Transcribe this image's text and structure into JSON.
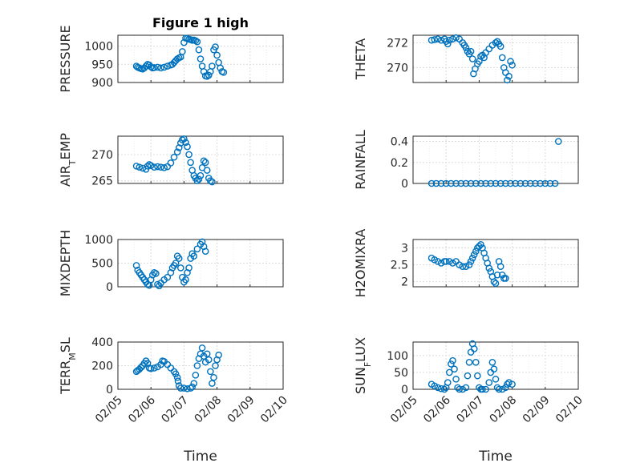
{
  "chart_data": [
    {
      "type": "scatter",
      "id": "pressure",
      "title": "Figure 1 high",
      "ylabel_main": "PRESSURE",
      "ylabel_sub": "",
      "ylabel_tail": "",
      "ylim": [
        900,
        1030
      ],
      "yticks": [
        900,
        950,
        1000
      ],
      "xticks": [
        "02/05",
        "02/06",
        "02/07",
        "02/08",
        "02/09",
        "02/10"
      ],
      "show_xticks": false,
      "xlabel": "",
      "color": "#0072BD",
      "grid": true,
      "points": [
        [
          0.56,
          945
        ],
        [
          0.6,
          942
        ],
        [
          0.65,
          940
        ],
        [
          0.7,
          938
        ],
        [
          0.75,
          937
        ],
        [
          0.8,
          940
        ],
        [
          0.85,
          945
        ],
        [
          0.9,
          950
        ],
        [
          0.95,
          948
        ],
        [
          1.0,
          943
        ],
        [
          1.05,
          940
        ],
        [
          1.1,
          941
        ],
        [
          1.2,
          942
        ],
        [
          1.3,
          940
        ],
        [
          1.4,
          942
        ],
        [
          1.5,
          945
        ],
        [
          1.6,
          948
        ],
        [
          1.65,
          950
        ],
        [
          1.7,
          955
        ],
        [
          1.75,
          960
        ],
        [
          1.8,
          965
        ],
        [
          1.85,
          968
        ],
        [
          1.9,
          970
        ],
        [
          1.95,
          985
        ],
        [
          2.0,
          1010
        ],
        [
          2.05,
          1022
        ],
        [
          2.1,
          1021
        ],
        [
          2.15,
          1019
        ],
        [
          2.2,
          1018
        ],
        [
          2.25,
          1016
        ],
        [
          2.3,
          1017
        ],
        [
          2.35,
          1015
        ],
        [
          2.4,
          1012
        ],
        [
          2.45,
          990
        ],
        [
          2.5,
          965
        ],
        [
          2.55,
          945
        ],
        [
          2.6,
          930
        ],
        [
          2.65,
          918
        ],
        [
          2.7,
          917
        ],
        [
          2.75,
          920
        ],
        [
          2.8,
          930
        ],
        [
          2.85,
          945
        ],
        [
          2.9,
          990
        ],
        [
          2.95,
          998
        ],
        [
          3.0,
          975
        ],
        [
          3.05,
          955
        ],
        [
          3.1,
          940
        ],
        [
          3.15,
          930
        ],
        [
          3.2,
          928
        ]
      ]
    },
    {
      "type": "scatter",
      "id": "theta",
      "title": "",
      "ylabel_main": "THETA",
      "ylabel_sub": "",
      "ylabel_tail": "",
      "ylim": [
        268.8,
        272.6
      ],
      "yticks": [
        270,
        272
      ],
      "xticks": [
        "02/05",
        "02/06",
        "02/07",
        "02/08",
        "02/09",
        "02/10"
      ],
      "show_xticks": false,
      "xlabel": "",
      "color": "#0072BD",
      "grid": true,
      "points": [
        [
          0.56,
          272.2
        ],
        [
          0.65,
          272.25
        ],
        [
          0.75,
          272.3
        ],
        [
          0.85,
          272.2
        ],
        [
          0.95,
          272.3
        ],
        [
          1.0,
          272.1
        ],
        [
          1.05,
          271.9
        ],
        [
          1.1,
          272.2
        ],
        [
          1.2,
          272.3
        ],
        [
          1.3,
          272.4
        ],
        [
          1.4,
          272.3
        ],
        [
          1.5,
          272.0
        ],
        [
          1.55,
          271.8
        ],
        [
          1.6,
          271.6
        ],
        [
          1.65,
          271.3
        ],
        [
          1.7,
          271.1
        ],
        [
          1.75,
          271.3
        ],
        [
          1.8,
          270.7
        ],
        [
          1.83,
          269.5
        ],
        [
          1.88,
          269.9
        ],
        [
          1.95,
          270.3
        ],
        [
          2.0,
          270.5
        ],
        [
          2.05,
          270.9
        ],
        [
          2.1,
          271.0
        ],
        [
          2.15,
          270.8
        ],
        [
          2.2,
          271.2
        ],
        [
          2.3,
          271.5
        ],
        [
          2.4,
          271.8
        ],
        [
          2.5,
          272.0
        ],
        [
          2.55,
          272.1
        ],
        [
          2.6,
          271.9
        ],
        [
          2.65,
          271.7
        ],
        [
          2.7,
          270.8
        ],
        [
          2.75,
          270.0
        ],
        [
          2.8,
          269.6
        ],
        [
          2.85,
          269.0
        ],
        [
          2.9,
          269.3
        ],
        [
          2.95,
          270.5
        ],
        [
          3.0,
          270.2
        ]
      ]
    },
    {
      "type": "scatter",
      "id": "air_temp",
      "title": "",
      "ylabel_main": "AIR",
      "ylabel_sub": "T",
      "ylabel_tail": "EMP",
      "ylim": [
        264.5,
        273.5
      ],
      "yticks": [
        265,
        270
      ],
      "xticks": [
        "02/05",
        "02/06",
        "02/07",
        "02/08",
        "02/09",
        "02/10"
      ],
      "show_xticks": false,
      "xlabel": "",
      "color": "#0072BD",
      "grid": true,
      "points": [
        [
          0.56,
          267.8
        ],
        [
          0.65,
          267.6
        ],
        [
          0.75,
          267.4
        ],
        [
          0.85,
          267.2
        ],
        [
          0.9,
          267.8
        ],
        [
          0.95,
          268.1
        ],
        [
          1.0,
          267.9
        ],
        [
          1.1,
          267.6
        ],
        [
          1.2,
          267.7
        ],
        [
          1.3,
          267.6
        ],
        [
          1.4,
          267.5
        ],
        [
          1.5,
          267.7
        ],
        [
          1.6,
          268.4
        ],
        [
          1.7,
          269.5
        ],
        [
          1.8,
          270.5
        ],
        [
          1.85,
          271.3
        ],
        [
          1.9,
          272.2
        ],
        [
          1.95,
          272.8
        ],
        [
          2.0,
          273.0
        ],
        [
          2.05,
          272.3
        ],
        [
          2.1,
          271.5
        ],
        [
          2.15,
          270.0
        ],
        [
          2.2,
          268.5
        ],
        [
          2.25,
          267.0
        ],
        [
          2.3,
          266.0
        ],
        [
          2.35,
          265.5
        ],
        [
          2.4,
          265.0
        ],
        [
          2.45,
          265.3
        ],
        [
          2.5,
          266.0
        ],
        [
          2.55,
          267.5
        ],
        [
          2.6,
          268.8
        ],
        [
          2.65,
          268.5
        ],
        [
          2.7,
          267.0
        ],
        [
          2.75,
          265.5
        ],
        [
          2.8,
          265.0
        ],
        [
          2.85,
          264.8
        ]
      ]
    },
    {
      "type": "scatter",
      "id": "rainfall",
      "title": "",
      "ylabel_main": "RAINFALL",
      "ylabel_sub": "",
      "ylabel_tail": "",
      "ylim": [
        0,
        0.45
      ],
      "yticks": [
        0,
        0.2,
        0.4
      ],
      "xticks": [
        "02/05",
        "02/06",
        "02/07",
        "02/08",
        "02/09",
        "02/10"
      ],
      "show_xticks": false,
      "xlabel": "",
      "color": "#0072BD",
      "grid": true,
      "points": [
        [
          0.56,
          0
        ],
        [
          0.7,
          0
        ],
        [
          0.85,
          0
        ],
        [
          1.0,
          0
        ],
        [
          1.15,
          0
        ],
        [
          1.3,
          0
        ],
        [
          1.45,
          0
        ],
        [
          1.6,
          0
        ],
        [
          1.75,
          0
        ],
        [
          1.9,
          0
        ],
        [
          2.05,
          0
        ],
        [
          2.2,
          0
        ],
        [
          2.35,
          0
        ],
        [
          2.5,
          0
        ],
        [
          2.65,
          0
        ],
        [
          2.8,
          0
        ],
        [
          2.95,
          0
        ],
        [
          3.1,
          0
        ],
        [
          3.25,
          0
        ],
        [
          3.4,
          0
        ],
        [
          3.55,
          0
        ],
        [
          3.7,
          0
        ],
        [
          3.85,
          0
        ],
        [
          4.0,
          0
        ],
        [
          4.15,
          0
        ],
        [
          4.3,
          0
        ],
        [
          4.4,
          0.4
        ]
      ]
    },
    {
      "type": "scatter",
      "id": "mixdepth",
      "title": "",
      "ylabel_main": "MIXDEPTH",
      "ylabel_sub": "",
      "ylabel_tail": "",
      "ylim": [
        0,
        1000
      ],
      "yticks": [
        0,
        500,
        1000
      ],
      "xticks": [
        "02/05",
        "02/06",
        "02/07",
        "02/08",
        "02/09",
        "02/10"
      ],
      "show_xticks": false,
      "xlabel": "",
      "color": "#0072BD",
      "grid": true,
      "points": [
        [
          0.56,
          450
        ],
        [
          0.6,
          350
        ],
        [
          0.65,
          300
        ],
        [
          0.7,
          250
        ],
        [
          0.75,
          200
        ],
        [
          0.8,
          150
        ],
        [
          0.85,
          100
        ],
        [
          0.9,
          50
        ],
        [
          0.95,
          30
        ],
        [
          1.0,
          150
        ],
        [
          1.05,
          250
        ],
        [
          1.1,
          300
        ],
        [
          1.15,
          280
        ],
        [
          1.2,
          50
        ],
        [
          1.25,
          20
        ],
        [
          1.3,
          80
        ],
        [
          1.4,
          150
        ],
        [
          1.5,
          200
        ],
        [
          1.6,
          300
        ],
        [
          1.65,
          400
        ],
        [
          1.7,
          450
        ],
        [
          1.75,
          500
        ],
        [
          1.8,
          650
        ],
        [
          1.85,
          600
        ],
        [
          1.9,
          400
        ],
        [
          1.95,
          200
        ],
        [
          2.0,
          100
        ],
        [
          2.05,
          150
        ],
        [
          2.1,
          300
        ],
        [
          2.15,
          400
        ],
        [
          2.2,
          600
        ],
        [
          2.25,
          700
        ],
        [
          2.3,
          650
        ],
        [
          2.4,
          800
        ],
        [
          2.5,
          900
        ],
        [
          2.55,
          950
        ],
        [
          2.6,
          850
        ],
        [
          2.65,
          750
        ]
      ]
    },
    {
      "type": "scatter",
      "id": "h2omixra",
      "title": "",
      "ylabel_main": "H2OMIXRA",
      "ylabel_sub": "",
      "ylabel_tail": "",
      "ylim": [
        1.85,
        3.25
      ],
      "yticks": [
        2,
        2.5,
        3
      ],
      "xticks": [
        "02/05",
        "02/06",
        "02/07",
        "02/08",
        "02/09",
        "02/10"
      ],
      "show_xticks": false,
      "xlabel": "",
      "color": "#0072BD",
      "grid": true,
      "points": [
        [
          0.56,
          2.7
        ],
        [
          0.65,
          2.65
        ],
        [
          0.75,
          2.6
        ],
        [
          0.85,
          2.55
        ],
        [
          0.95,
          2.6
        ],
        [
          1.0,
          2.6
        ],
        [
          1.1,
          2.6
        ],
        [
          1.2,
          2.55
        ],
        [
          1.3,
          2.6
        ],
        [
          1.4,
          2.5
        ],
        [
          1.5,
          2.45
        ],
        [
          1.6,
          2.45
        ],
        [
          1.7,
          2.5
        ],
        [
          1.75,
          2.6
        ],
        [
          1.8,
          2.7
        ],
        [
          1.85,
          2.8
        ],
        [
          1.9,
          2.9
        ],
        [
          1.95,
          3.0
        ],
        [
          2.0,
          3.05
        ],
        [
          2.05,
          3.1
        ],
        [
          2.1,
          3.0
        ],
        [
          2.15,
          2.85
        ],
        [
          2.2,
          2.7
        ],
        [
          2.25,
          2.55
        ],
        [
          2.3,
          2.4
        ],
        [
          2.35,
          2.3
        ],
        [
          2.4,
          2.15
        ],
        [
          2.45,
          2.0
        ],
        [
          2.5,
          1.95
        ],
        [
          2.55,
          2.2
        ],
        [
          2.6,
          2.6
        ],
        [
          2.65,
          2.45
        ],
        [
          2.7,
          2.2
        ],
        [
          2.75,
          2.1
        ],
        [
          2.8,
          2.1
        ]
      ]
    },
    {
      "type": "scatter",
      "id": "terr_msl",
      "title": "",
      "ylabel_main": "TERR",
      "ylabel_sub": "M",
      "ylabel_tail": "SL",
      "ylim": [
        0,
        400
      ],
      "yticks": [
        0,
        200,
        400
      ],
      "xticks": [
        "02/05",
        "02/06",
        "02/07",
        "02/08",
        "02/09",
        "02/10"
      ],
      "show_xticks": true,
      "xlabel": "Time",
      "color": "#0072BD",
      "grid": true,
      "points": [
        [
          0.56,
          150
        ],
        [
          0.6,
          160
        ],
        [
          0.65,
          170
        ],
        [
          0.7,
          185
        ],
        [
          0.75,
          200
        ],
        [
          0.8,
          220
        ],
        [
          0.85,
          240
        ],
        [
          0.9,
          220
        ],
        [
          0.95,
          180
        ],
        [
          1.0,
          175
        ],
        [
          1.1,
          180
        ],
        [
          1.2,
          190
        ],
        [
          1.3,
          210
        ],
        [
          1.35,
          240
        ],
        [
          1.4,
          235
        ],
        [
          1.5,
          210
        ],
        [
          1.6,
          180
        ],
        [
          1.7,
          150
        ],
        [
          1.75,
          130
        ],
        [
          1.8,
          100
        ],
        [
          1.82,
          70
        ],
        [
          1.85,
          30
        ],
        [
          1.9,
          10
        ],
        [
          2.0,
          10
        ],
        [
          2.1,
          5
        ],
        [
          2.2,
          10
        ],
        [
          2.25,
          20
        ],
        [
          2.3,
          50
        ],
        [
          2.35,
          120
        ],
        [
          2.4,
          200
        ],
        [
          2.45,
          260
        ],
        [
          2.5,
          300
        ],
        [
          2.55,
          350
        ],
        [
          2.6,
          280
        ],
        [
          2.65,
          230
        ],
        [
          2.7,
          300
        ],
        [
          2.75,
          250
        ],
        [
          2.8,
          150
        ],
        [
          2.85,
          50
        ],
        [
          2.9,
          100
        ],
        [
          2.95,
          200
        ],
        [
          3.0,
          250
        ],
        [
          3.05,
          290
        ]
      ]
    },
    {
      "type": "scatter",
      "id": "sun_flux",
      "title": "",
      "ylabel_main": "SUN",
      "ylabel_sub": "F",
      "ylabel_tail": "LUX",
      "ylim": [
        0,
        140
      ],
      "yticks": [
        0,
        50,
        100
      ],
      "xticks": [
        "02/05",
        "02/06",
        "02/07",
        "02/08",
        "02/09",
        "02/10"
      ],
      "show_xticks": true,
      "xlabel": "Time",
      "color": "#0072BD",
      "grid": true,
      "points": [
        [
          0.56,
          15
        ],
        [
          0.65,
          10
        ],
        [
          0.75,
          5
        ],
        [
          0.85,
          2
        ],
        [
          0.95,
          0
        ],
        [
          1.0,
          5
        ],
        [
          1.05,
          20
        ],
        [
          1.1,
          50
        ],
        [
          1.15,
          75
        ],
        [
          1.2,
          85
        ],
        [
          1.25,
          60
        ],
        [
          1.3,
          30
        ],
        [
          1.35,
          5
        ],
        [
          1.4,
          0
        ],
        [
          1.5,
          0
        ],
        [
          1.6,
          5
        ],
        [
          1.65,
          40
        ],
        [
          1.7,
          80
        ],
        [
          1.75,
          110
        ],
        [
          1.8,
          135
        ],
        [
          1.85,
          120
        ],
        [
          1.9,
          80
        ],
        [
          1.95,
          40
        ],
        [
          2.0,
          5
        ],
        [
          2.05,
          0
        ],
        [
          2.1,
          0
        ],
        [
          2.2,
          0
        ],
        [
          2.3,
          20
        ],
        [
          2.35,
          50
        ],
        [
          2.4,
          80
        ],
        [
          2.45,
          60
        ],
        [
          2.5,
          30
        ],
        [
          2.55,
          5
        ],
        [
          2.6,
          0
        ],
        [
          2.7,
          0
        ],
        [
          2.8,
          5
        ],
        [
          2.85,
          15
        ],
        [
          2.9,
          20
        ],
        [
          3.0,
          15
        ]
      ]
    }
  ]
}
